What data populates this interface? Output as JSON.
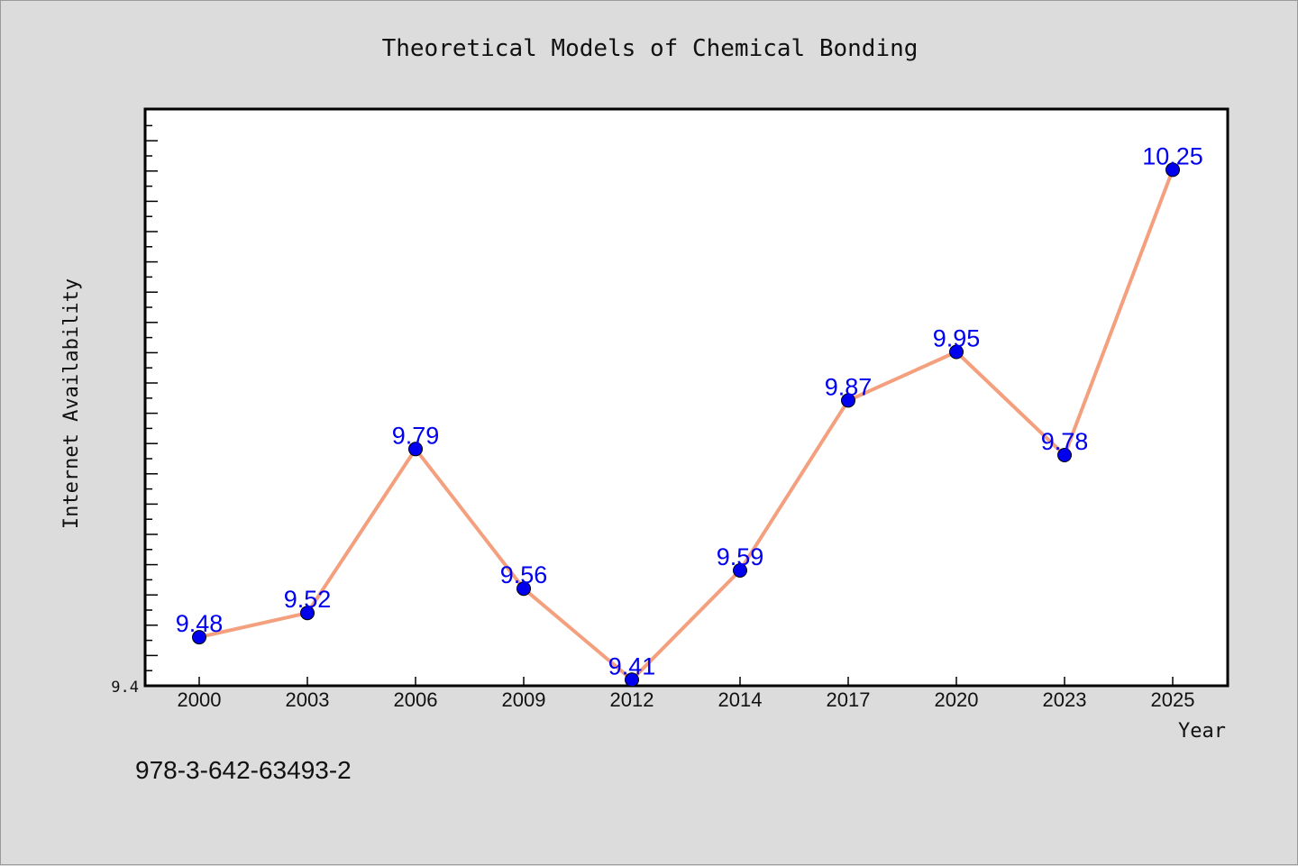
{
  "chart_data": {
    "type": "line",
    "title": "Theoretical Models of Chemical Bonding",
    "xlabel": "Year",
    "ylabel": "Internet Availability",
    "categories": [
      "2000",
      "2003",
      "2006",
      "2009",
      "2012",
      "2014",
      "2017",
      "2020",
      "2023",
      "2025"
    ],
    "values": [
      9.48,
      9.52,
      9.79,
      9.56,
      9.41,
      9.59,
      9.87,
      9.95,
      9.78,
      10.25
    ],
    "data_labels": [
      "9.48",
      "9.52",
      "9.79",
      "9.56",
      "9.41",
      "9.59",
      "9.87",
      "9.95",
      "9.78",
      "10.25"
    ],
    "y_tick_label": "9.4",
    "ylim": [
      9.4,
      10.35
    ],
    "grid": false,
    "line_color": "#f4a07e",
    "marker_color": "#0000ee",
    "label_color": "#0000ee"
  },
  "footer": {
    "isbn": "978-3-642-63493-2"
  }
}
